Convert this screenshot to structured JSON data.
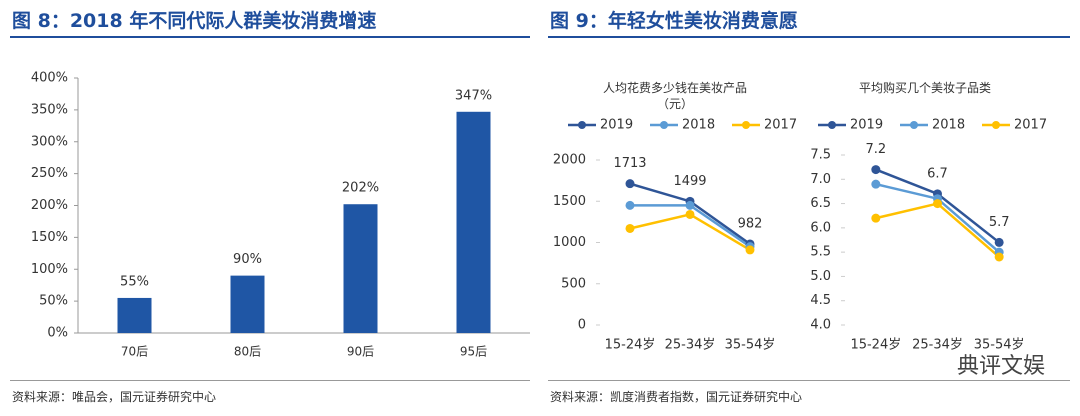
{
  "figures": [
    {
      "heading": "图 8：2018 年不同代际人群美妆消费增速",
      "source": "资料来源：唯品会，国元证券研究中心"
    },
    {
      "heading": "图 9：年轻女性美妆消费意愿",
      "source": "资料来源：凯度消费者指数，国元证券研究中心"
    }
  ],
  "watermark": "典评文娱",
  "chart_data": [
    {
      "type": "bar",
      "categories": [
        "70后",
        "80后",
        "90后",
        "95后"
      ],
      "values": [
        55,
        90,
        202,
        347
      ],
      "value_labels": [
        "55%",
        "90%",
        "202%",
        "347%"
      ],
      "color": "#1f56a5",
      "ylim": [
        0,
        400
      ],
      "yticks": [
        {
          "value": 0,
          "label": "0%"
        },
        {
          "value": 50,
          "label": "50%"
        },
        {
          "value": 100,
          "label": "100%"
        },
        {
          "value": 150,
          "label": "150%"
        },
        {
          "value": 200,
          "label": "200%"
        },
        {
          "value": 250,
          "label": "250%"
        },
        {
          "value": 300,
          "label": "300%"
        },
        {
          "value": 350,
          "label": "350%"
        },
        {
          "value": 400,
          "label": "400%"
        }
      ]
    },
    {
      "type": "line",
      "title": "人均花费多少钱在美妆产品（元）",
      "categories": [
        "15-24岁",
        "25-34岁",
        "35-54岁"
      ],
      "series": [
        {
          "name": "2019",
          "color": "#2f5597",
          "values": [
            1713,
            1499,
            982
          ],
          "data_labels": true
        },
        {
          "name": "2018",
          "color": "#5b9bd5",
          "values": [
            1450,
            1450,
            950
          ]
        },
        {
          "name": "2017",
          "color": "#ffc000",
          "values": [
            1170,
            1340,
            910
          ]
        }
      ],
      "ylim": [
        0,
        2000
      ],
      "yticks": [
        0,
        500,
        1000,
        1500,
        2000
      ]
    },
    {
      "type": "line",
      "title": "平均购买几个美妆子品类",
      "categories": [
        "15-24岁",
        "25-34岁",
        "35-54岁"
      ],
      "series": [
        {
          "name": "2019",
          "color": "#2f5597",
          "values": [
            7.2,
            6.7,
            5.7
          ],
          "data_labels": true
        },
        {
          "name": "2018",
          "color": "#5b9bd5",
          "values": [
            6.9,
            6.6,
            5.5
          ]
        },
        {
          "name": "2017",
          "color": "#ffc000",
          "values": [
            6.2,
            6.5,
            5.4
          ]
        }
      ],
      "ylim": [
        4.0,
        7.5
      ],
      "yticks": [
        {
          "value": 4.0,
          "label": "4.0"
        },
        {
          "value": 4.5,
          "label": "4.5"
        },
        {
          "value": 5.0,
          "label": "5.0"
        },
        {
          "value": 5.5,
          "label": "5.5"
        },
        {
          "value": 6.0,
          "label": "6.0"
        },
        {
          "value": 6.5,
          "label": "6.5"
        },
        {
          "value": 7.0,
          "label": "7.0"
        },
        {
          "value": 7.5,
          "label": "7.5"
        }
      ]
    }
  ]
}
